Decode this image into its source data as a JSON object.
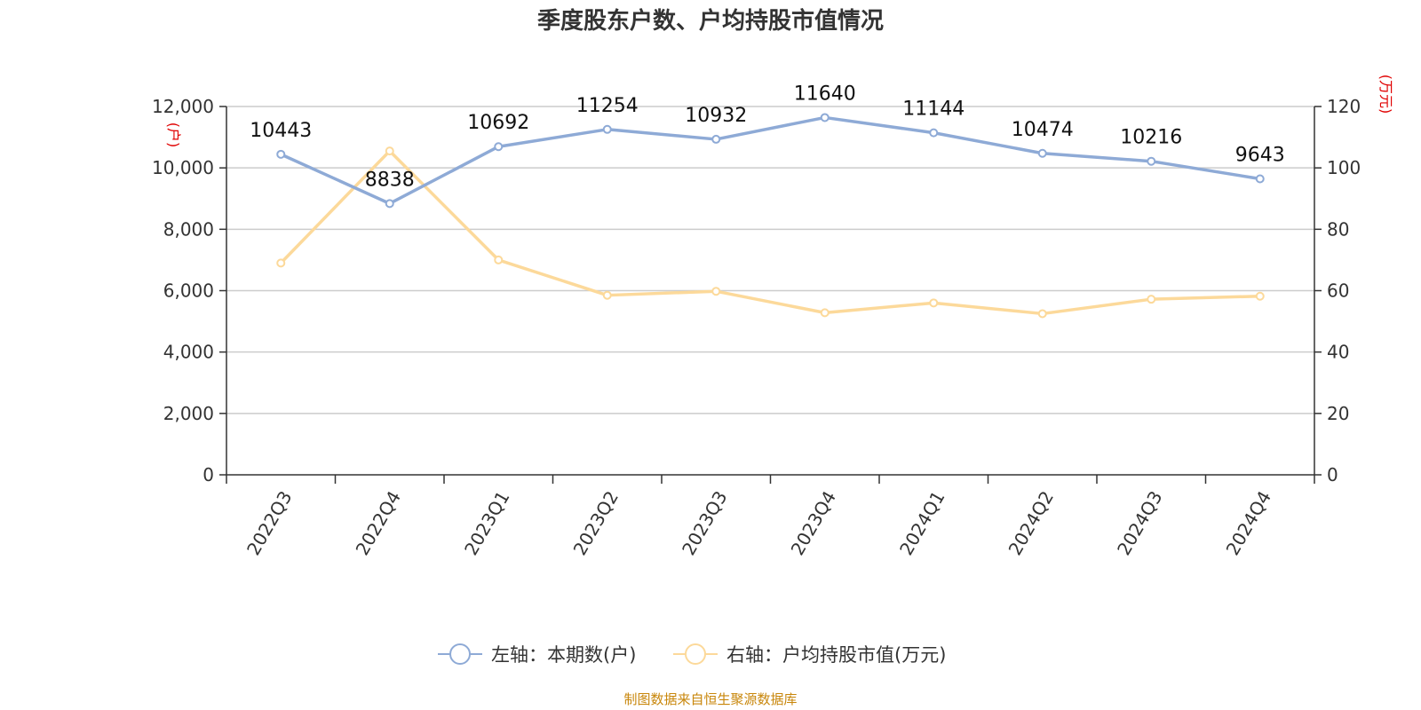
{
  "chart_data": {
    "type": "line",
    "title": "季度股东户数、户均持股市值情况",
    "categories": [
      "2022Q3",
      "2022Q4",
      "2023Q1",
      "2023Q2",
      "2023Q3",
      "2023Q4",
      "2024Q1",
      "2024Q2",
      "2024Q3",
      "2024Q4"
    ],
    "left_axis": {
      "unit": "(户)",
      "ylim": [
        0,
        12000
      ],
      "ticks": [
        "0",
        "2,000",
        "4,000",
        "6,000",
        "8,000",
        "10,000",
        "12,000"
      ]
    },
    "right_axis": {
      "unit": "(万元)",
      "ylim": [
        0,
        120
      ],
      "ticks": [
        "0",
        "20",
        "40",
        "60",
        "80",
        "100",
        "120"
      ]
    },
    "series": [
      {
        "name": "左轴：本期数(户)",
        "axis": "left",
        "color": "#8eaad6",
        "values": [
          10443,
          8838,
          10692,
          11254,
          10932,
          11640,
          11144,
          10474,
          10216,
          9643
        ],
        "labels": [
          "10443",
          "8838",
          "10692",
          "11254",
          "10932",
          "11640",
          "11144",
          "10474",
          "10216",
          "9643"
        ]
      },
      {
        "name": "右轴：户均持股市值(万元)",
        "axis": "right",
        "color": "#fcd99a",
        "values": [
          69,
          105.5,
          70,
          58.5,
          59.8,
          52.8,
          56,
          52.5,
          57.2,
          58.2
        ]
      }
    ],
    "grid": true,
    "legend_position": "bottom-center"
  },
  "source_note": "制图数据来自恒生聚源数据库"
}
